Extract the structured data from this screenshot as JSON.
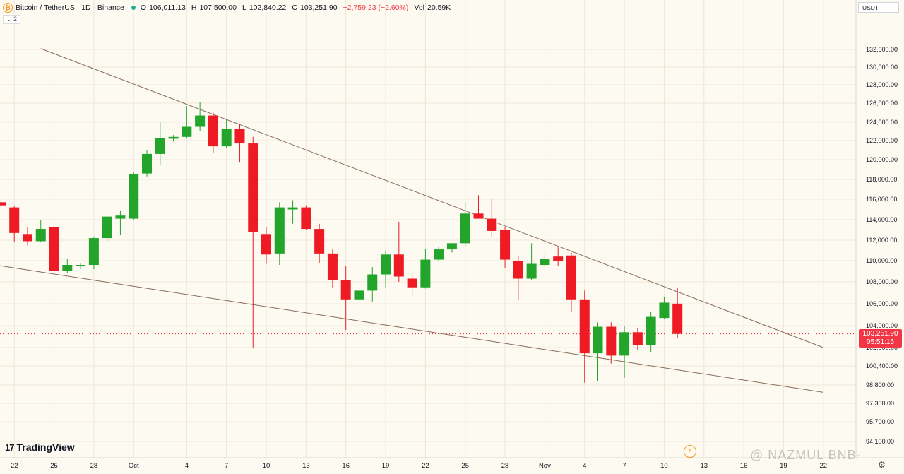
{
  "header": {
    "symbol": "Bitcoin / TetherUS · 1D · Binance",
    "open_label": "O",
    "open": "106,011.13",
    "high_label": "H",
    "high": "107,500.00",
    "low_label": "L",
    "low": "102,840.22",
    "close_label": "C",
    "close": "103,251.90",
    "change": "−2,759.23 (−2.60%)",
    "vol_label": "Vol",
    "vol": "20.59K",
    "collapse_label": "⌄ 2"
  },
  "currency": "USDT",
  "price_label": {
    "price": "103,251.90",
    "countdown": "05:51:15"
  },
  "brand": {
    "mark": "17",
    "text": "TradingView"
  },
  "watermark": "NAZMUL BNB-",
  "colors": {
    "up": "#22a52a",
    "down": "#ee1b24",
    "trendline": "#8a6a5a",
    "grid": "#efe5d8"
  },
  "chart_data": {
    "type": "candlestick",
    "title": "Bitcoin / TetherUS · 1D · Binance",
    "y_ticks": [
      94100,
      95700,
      97300,
      98800,
      100400,
      102000,
      104000,
      106000,
      108000,
      110000,
      112000,
      114000,
      116000,
      118000,
      120000,
      122000,
      124000,
      126000,
      128000,
      130000,
      132000
    ],
    "y_tick_labels": [
      "94,100.00",
      "95,700.00",
      "97,300.00",
      "98,800.00",
      "100,400.00",
      "102,000.00",
      "104,000.00",
      "106,000.00",
      "108,000.00",
      "110,000.00",
      "112,000.00",
      "114,000.00",
      "116,000.00",
      "118,000.00",
      "120,000.00",
      "122,000.00",
      "124,000.00",
      "126,000.00",
      "128,000.00",
      "130,000.00",
      "132,000.00"
    ],
    "x_ticks": [
      {
        "day": -10,
        "label": "22"
      },
      {
        "day": -7,
        "label": "25"
      },
      {
        "day": -4,
        "label": "28"
      },
      {
        "day": -1,
        "label": "Oct"
      },
      {
        "day": 3,
        "label": "4"
      },
      {
        "day": 6,
        "label": "7"
      },
      {
        "day": 9,
        "label": "10"
      },
      {
        "day": 12,
        "label": "13"
      },
      {
        "day": 15,
        "label": "16"
      },
      {
        "day": 18,
        "label": "19"
      },
      {
        "day": 21,
        "label": "22"
      },
      {
        "day": 24,
        "label": "25"
      },
      {
        "day": 27,
        "label": "28"
      },
      {
        "day": 30,
        "label": "Nov"
      },
      {
        "day": 33,
        "label": "4"
      },
      {
        "day": 36,
        "label": "7"
      },
      {
        "day": 39,
        "label": "10"
      },
      {
        "day": 42,
        "label": "13"
      },
      {
        "day": 45,
        "label": "16"
      },
      {
        "day": 48,
        "label": "19"
      },
      {
        "day": 51,
        "label": "22"
      }
    ],
    "candles": [
      {
        "d": -12,
        "o": 115700,
        "h": 115900,
        "l": 115400,
        "c": 115700
      },
      {
        "d": -11,
        "o": 115700,
        "h": 115900,
        "l": 115200,
        "c": 115400
      },
      {
        "d": -10,
        "o": 115200,
        "h": 115300,
        "l": 111800,
        "c": 112700
      },
      {
        "d": -9,
        "o": 112600,
        "h": 113300,
        "l": 111500,
        "c": 111900
      },
      {
        "d": -8,
        "o": 111900,
        "h": 114000,
        "l": 111800,
        "c": 113100
      },
      {
        "d": -7,
        "o": 113300,
        "h": 113400,
        "l": 108800,
        "c": 109000
      },
      {
        "d": -6,
        "o": 109000,
        "h": 110200,
        "l": 108800,
        "c": 109600
      },
      {
        "d": -5,
        "o": 109600,
        "h": 109800,
        "l": 109200,
        "c": 109600
      },
      {
        "d": -4,
        "o": 109600,
        "h": 112300,
        "l": 109200,
        "c": 112200
      },
      {
        "d": -3,
        "o": 112200,
        "h": 114400,
        "l": 111800,
        "c": 114300
      },
      {
        "d": -2,
        "o": 114100,
        "h": 114900,
        "l": 112500,
        "c": 114400
      },
      {
        "d": -1,
        "o": 114100,
        "h": 118700,
        "l": 114000,
        "c": 118500
      },
      {
        "d": 0,
        "o": 118600,
        "h": 121000,
        "l": 118300,
        "c": 120600
      },
      {
        "d": 1,
        "o": 120600,
        "h": 124000,
        "l": 119500,
        "c": 122300
      },
      {
        "d": 2,
        "o": 122200,
        "h": 122600,
        "l": 121900,
        "c": 122400
      },
      {
        "d": 3,
        "o": 122400,
        "h": 125700,
        "l": 122200,
        "c": 123500
      },
      {
        "d": 4,
        "o": 123500,
        "h": 126100,
        "l": 123000,
        "c": 124700
      },
      {
        "d": 5,
        "o": 124700,
        "h": 125000,
        "l": 120700,
        "c": 121400
      },
      {
        "d": 6,
        "o": 121400,
        "h": 124300,
        "l": 121200,
        "c": 123300
      },
      {
        "d": 7,
        "o": 123300,
        "h": 123800,
        "l": 119700,
        "c": 121700
      },
      {
        "d": 8,
        "o": 121700,
        "h": 122400,
        "l": 102000,
        "c": 112800
      },
      {
        "d": 9,
        "o": 112600,
        "h": 113300,
        "l": 109700,
        "c": 110600
      },
      {
        "d": 10,
        "o": 110700,
        "h": 115700,
        "l": 109600,
        "c": 115200
      },
      {
        "d": 11,
        "o": 115000,
        "h": 115900,
        "l": 113600,
        "c": 115200
      },
      {
        "d": 12,
        "o": 115200,
        "h": 115400,
        "l": 113000,
        "c": 113100
      },
      {
        "d": 13,
        "o": 113100,
        "h": 113600,
        "l": 109800,
        "c": 110700
      },
      {
        "d": 14,
        "o": 110700,
        "h": 111100,
        "l": 107500,
        "c": 108200
      },
      {
        "d": 15,
        "o": 108200,
        "h": 109500,
        "l": 103600,
        "c": 106400
      },
      {
        "d": 16,
        "o": 106400,
        "h": 107300,
        "l": 106100,
        "c": 107200
      },
      {
        "d": 17,
        "o": 107200,
        "h": 109400,
        "l": 106200,
        "c": 108700
      },
      {
        "d": 18,
        "o": 108700,
        "h": 111000,
        "l": 107500,
        "c": 110600
      },
      {
        "d": 19,
        "o": 110600,
        "h": 113800,
        "l": 108000,
        "c": 108500
      },
      {
        "d": 20,
        "o": 108300,
        "h": 108900,
        "l": 106800,
        "c": 107500
      },
      {
        "d": 21,
        "o": 107500,
        "h": 111100,
        "l": 107400,
        "c": 110100
      },
      {
        "d": 22,
        "o": 110100,
        "h": 111400,
        "l": 109900,
        "c": 111100
      },
      {
        "d": 23,
        "o": 111100,
        "h": 111700,
        "l": 110800,
        "c": 111700
      },
      {
        "d": 24,
        "o": 111700,
        "h": 115700,
        "l": 111400,
        "c": 114600
      },
      {
        "d": 25,
        "o": 114600,
        "h": 116400,
        "l": 114100,
        "c": 114100
      },
      {
        "d": 26,
        "o": 114100,
        "h": 116100,
        "l": 112300,
        "c": 112900
      },
      {
        "d": 27,
        "o": 113000,
        "h": 113300,
        "l": 109300,
        "c": 110100
      },
      {
        "d": 28,
        "o": 110000,
        "h": 110500,
        "l": 106300,
        "c": 108300
      },
      {
        "d": 29,
        "o": 108300,
        "h": 111700,
        "l": 108200,
        "c": 109700
      },
      {
        "d": 30,
        "o": 109600,
        "h": 110600,
        "l": 109400,
        "c": 110200
      },
      {
        "d": 31,
        "o": 110400,
        "h": 111300,
        "l": 109500,
        "c": 110000
      },
      {
        "d": 32,
        "o": 110500,
        "h": 110800,
        "l": 105300,
        "c": 106400
      },
      {
        "d": 33,
        "o": 106400,
        "h": 107200,
        "l": 99000,
        "c": 101500
      },
      {
        "d": 34,
        "o": 101500,
        "h": 104300,
        "l": 99100,
        "c": 103900
      },
      {
        "d": 35,
        "o": 103900,
        "h": 104300,
        "l": 100600,
        "c": 101300
      },
      {
        "d": 36,
        "o": 101300,
        "h": 104000,
        "l": 99400,
        "c": 103400
      },
      {
        "d": 37,
        "o": 103400,
        "h": 103800,
        "l": 101800,
        "c": 102200
      },
      {
        "d": 38,
        "o": 102200,
        "h": 105300,
        "l": 101600,
        "c": 104800
      },
      {
        "d": 39,
        "o": 104700,
        "h": 106600,
        "l": 104600,
        "c": 106100
      },
      {
        "d": 40,
        "o": 106011.13,
        "h": 107500,
        "l": 102840.22,
        "c": 103251.9
      }
    ],
    "trendlines": [
      {
        "from": {
          "d": -8,
          "p": 132100
        },
        "to": {
          "d": 51,
          "p": 102000
        }
      },
      {
        "from": {
          "d": -12,
          "p": 109700
        },
        "to": {
          "d": 51,
          "p": 98200
        }
      }
    ],
    "current_price": 103251.9,
    "grid": true
  }
}
